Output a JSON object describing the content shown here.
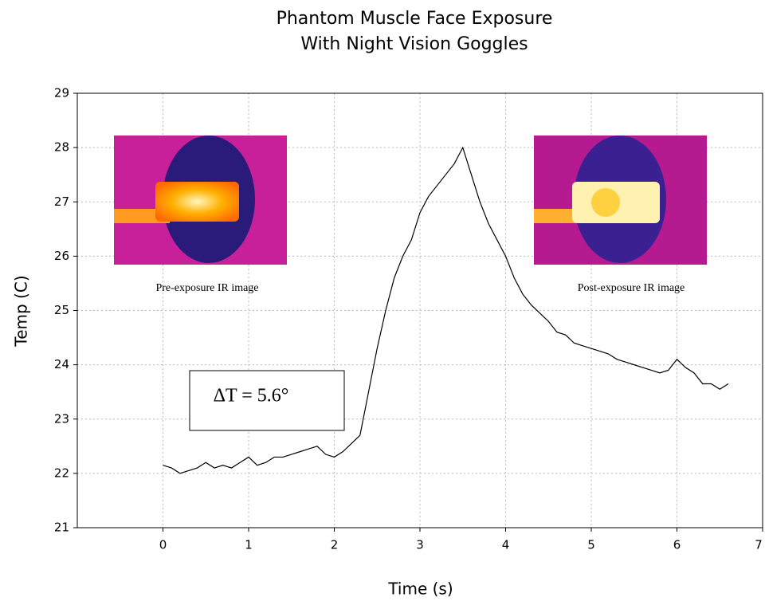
{
  "chart_data": {
    "type": "line",
    "title": [
      "Phantom Muscle Face Exposure",
      "With Night Vision Goggles"
    ],
    "x_label": "Time (s)",
    "y_label": "Temp (C)",
    "x": [
      0,
      0.1,
      0.2,
      0.3,
      0.4,
      0.5,
      0.6,
      0.7,
      0.8,
      0.9,
      1.0,
      1.1,
      1.2,
      1.3,
      1.4,
      1.5,
      1.6,
      1.7,
      1.8,
      1.9,
      2.0,
      2.1,
      2.2,
      2.3,
      2.4,
      2.5,
      2.6,
      2.7,
      2.8,
      2.9,
      3.0,
      3.1,
      3.2,
      3.3,
      3.4,
      3.5,
      3.6,
      3.7,
      3.8,
      3.9,
      4.0,
      4.1,
      4.2,
      4.3,
      4.4,
      4.5,
      4.6,
      4.7,
      4.8,
      4.9,
      5.0,
      5.1,
      5.2,
      5.3,
      5.4,
      5.5,
      5.6,
      5.7,
      5.8,
      5.9,
      6.0,
      6.1,
      6.2,
      6.3,
      6.4,
      6.5,
      6.6
    ],
    "series": [
      {
        "color": "#000000",
        "values": [
          22.15,
          22.1,
          22.0,
          22.05,
          22.1,
          22.2,
          22.1,
          22.15,
          22.1,
          22.2,
          22.3,
          22.15,
          22.2,
          22.3,
          22.3,
          22.35,
          22.4,
          22.45,
          22.5,
          22.35,
          22.3,
          22.4,
          22.55,
          22.7,
          23.5,
          24.3,
          25.0,
          25.6,
          26.0,
          26.3,
          26.8,
          27.1,
          27.3,
          27.5,
          27.7,
          28.0,
          27.5,
          27.0,
          26.6,
          26.3,
          26.0,
          25.6,
          25.3,
          25.1,
          24.95,
          24.8,
          24.6,
          24.55,
          24.4,
          24.35,
          24.3,
          24.25,
          24.2,
          24.1,
          24.05,
          24.0,
          23.95,
          23.9,
          23.85,
          23.9,
          24.1,
          23.95,
          23.85,
          23.65,
          23.65,
          23.55,
          23.65
        ]
      }
    ],
    "xlim": [
      -1,
      7
    ],
    "ylim": [
      21,
      29
    ],
    "xticks": [
      0,
      1,
      2,
      3,
      4,
      5,
      6,
      7
    ],
    "yticks": [
      21,
      22,
      23,
      24,
      25,
      26,
      27,
      28,
      29
    ],
    "grid": true,
    "annotations": [
      "ΔT = 5.6°",
      "Pre-exposure IR image",
      "Post-exposure IR image"
    ]
  }
}
